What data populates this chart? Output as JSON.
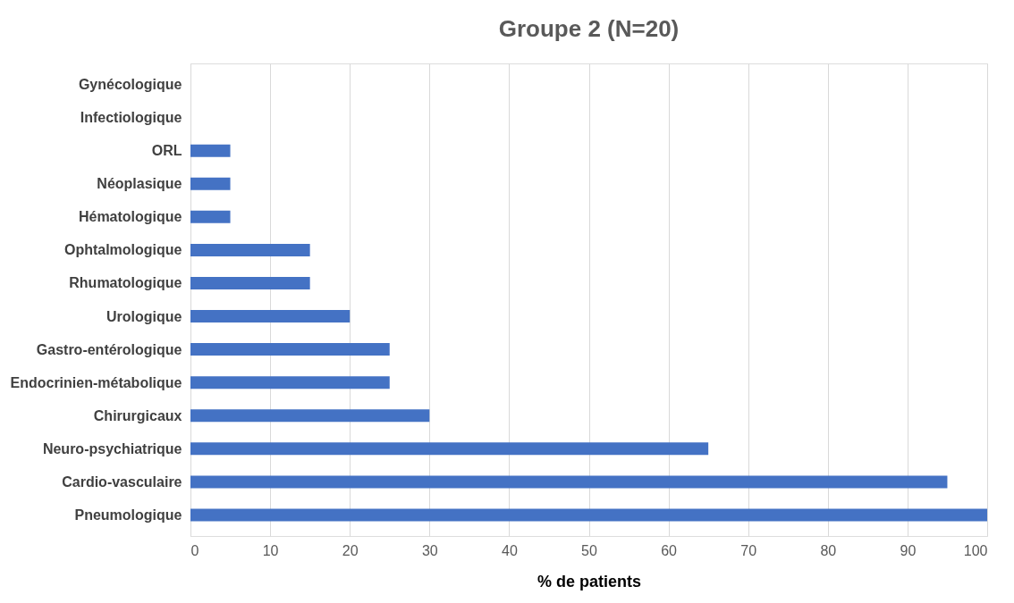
{
  "chart_data": {
    "type": "bar",
    "orientation": "horizontal",
    "title": "Groupe 2 (N=20)",
    "xlabel": "% de patients",
    "categories": [
      "Gynécologique",
      "Infectiologique",
      "ORL",
      "Néoplasique",
      "Hématologique",
      "Ophtalmologique",
      "Rhumatologique",
      "Urologique",
      "Gastro-entérologique",
      "Endocrinien-métabolique",
      "Chirurgicaux",
      "Neuro-psychiatrique",
      "Cardio-vasculaire",
      "Pneumologique"
    ],
    "values": [
      0,
      0,
      5,
      5,
      5,
      15,
      15,
      20,
      25,
      25,
      30,
      65,
      95,
      100
    ],
    "color": "#4472c4",
    "xlim": [
      0,
      100
    ],
    "xticks": [
      0,
      10,
      20,
      30,
      40,
      50,
      60,
      70,
      80,
      90,
      100
    ],
    "grid": "x"
  }
}
